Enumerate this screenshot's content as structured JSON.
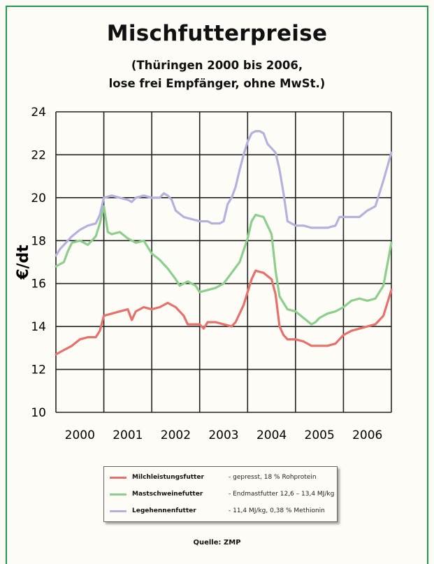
{
  "chart_data": {
    "type": "line",
    "title": "Mischfutterpreise",
    "subtitle_line1": "(Thüringen 2000 bis 2006,",
    "subtitle_line2": "lose frei Empfänger, ohne MwSt.)",
    "ylabel": "€/dt",
    "xlabel": "",
    "ylim": [
      10,
      24
    ],
    "yticks": [
      10,
      12,
      14,
      16,
      18,
      20,
      22,
      24
    ],
    "xlim": [
      0,
      84
    ],
    "x_unit": "months since Jan 2000",
    "year_labels": [
      "2000",
      "2001",
      "2002",
      "2003",
      "2004",
      "2005",
      "2006"
    ],
    "grid": true,
    "legend_position": "bottom-center",
    "series": [
      {
        "name": "Milchleistungsfutter",
        "description": "- gepresst, 18 % Rohprotein",
        "color": "#e8706a",
        "points": [
          [
            0,
            12.7
          ],
          [
            2,
            12.9
          ],
          [
            4,
            13.1
          ],
          [
            6,
            13.4
          ],
          [
            8,
            13.5
          ],
          [
            10,
            13.5
          ],
          [
            11,
            13.8
          ],
          [
            12,
            14.5
          ],
          [
            14,
            14.6
          ],
          [
            16,
            14.7
          ],
          [
            18,
            14.8
          ],
          [
            19,
            14.3
          ],
          [
            20,
            14.7
          ],
          [
            22,
            14.9
          ],
          [
            24,
            14.8
          ],
          [
            26,
            14.9
          ],
          [
            28,
            15.1
          ],
          [
            30,
            14.9
          ],
          [
            32,
            14.5
          ],
          [
            33,
            14.1
          ],
          [
            36,
            14.1
          ],
          [
            37,
            13.9
          ],
          [
            38,
            14.2
          ],
          [
            40,
            14.2
          ],
          [
            42,
            14.1
          ],
          [
            44,
            14.0
          ],
          [
            45,
            14.2
          ],
          [
            47,
            15.0
          ],
          [
            48,
            15.6
          ],
          [
            49,
            16.2
          ],
          [
            50,
            16.6
          ],
          [
            52,
            16.5
          ],
          [
            54,
            16.2
          ],
          [
            55,
            15.5
          ],
          [
            56,
            14.0
          ],
          [
            57,
            13.6
          ],
          [
            58,
            13.4
          ],
          [
            60,
            13.4
          ],
          [
            62,
            13.3
          ],
          [
            64,
            13.1
          ],
          [
            66,
            13.1
          ],
          [
            68,
            13.1
          ],
          [
            70,
            13.2
          ],
          [
            72,
            13.6
          ],
          [
            74,
            13.8
          ],
          [
            76,
            13.9
          ],
          [
            78,
            14.0
          ],
          [
            80,
            14.1
          ],
          [
            82,
            14.5
          ],
          [
            84,
            15.7
          ]
        ]
      },
      {
        "name": "Mastschweinefutter",
        "description": "- Endmastfutter 12,6 – 13,4 MJ/kg",
        "color": "#8ccf8c",
        "points": [
          [
            0,
            16.8
          ],
          [
            2,
            17.0
          ],
          [
            3,
            17.5
          ],
          [
            4,
            17.9
          ],
          [
            6,
            18.0
          ],
          [
            8,
            17.8
          ],
          [
            10,
            18.2
          ],
          [
            11,
            18.8
          ],
          [
            12,
            19.6
          ],
          [
            13,
            18.4
          ],
          [
            14,
            18.3
          ],
          [
            16,
            18.4
          ],
          [
            18,
            18.1
          ],
          [
            20,
            17.9
          ],
          [
            22,
            18.0
          ],
          [
            24,
            17.4
          ],
          [
            26,
            17.1
          ],
          [
            28,
            16.7
          ],
          [
            30,
            16.2
          ],
          [
            31,
            15.9
          ],
          [
            33,
            16.1
          ],
          [
            35,
            15.9
          ],
          [
            36,
            15.6
          ],
          [
            38,
            15.7
          ],
          [
            40,
            15.8
          ],
          [
            42,
            16.0
          ],
          [
            44,
            16.5
          ],
          [
            46,
            17.0
          ],
          [
            48,
            18.1
          ],
          [
            49,
            18.9
          ],
          [
            50,
            19.2
          ],
          [
            52,
            19.1
          ],
          [
            54,
            18.3
          ],
          [
            55,
            16.6
          ],
          [
            56,
            15.4
          ],
          [
            57,
            15.1
          ],
          [
            58,
            14.8
          ],
          [
            60,
            14.7
          ],
          [
            62,
            14.4
          ],
          [
            64,
            14.1
          ],
          [
            65,
            14.2
          ],
          [
            66,
            14.4
          ],
          [
            68,
            14.6
          ],
          [
            70,
            14.7
          ],
          [
            72,
            14.9
          ],
          [
            74,
            15.2
          ],
          [
            76,
            15.3
          ],
          [
            78,
            15.2
          ],
          [
            80,
            15.3
          ],
          [
            82,
            15.9
          ],
          [
            84,
            17.9
          ]
        ]
      },
      {
        "name": "Legehennenfutter",
        "description": "- 11,4 MJ/kg, 0,38 % Methionin",
        "color": "#b4b2dd",
        "points": [
          [
            0,
            17.3
          ],
          [
            1,
            17.6
          ],
          [
            2,
            17.8
          ],
          [
            4,
            18.2
          ],
          [
            6,
            18.5
          ],
          [
            8,
            18.7
          ],
          [
            10,
            18.8
          ],
          [
            11,
            19.2
          ],
          [
            12,
            20.0
          ],
          [
            14,
            20.1
          ],
          [
            16,
            20.0
          ],
          [
            18,
            19.9
          ],
          [
            19,
            19.8
          ],
          [
            20,
            20.0
          ],
          [
            22,
            20.1
          ],
          [
            24,
            20.0
          ],
          [
            26,
            20.0
          ],
          [
            27,
            20.2
          ],
          [
            28,
            20.1
          ],
          [
            29,
            19.9
          ],
          [
            30,
            19.4
          ],
          [
            32,
            19.1
          ],
          [
            34,
            19.0
          ],
          [
            36,
            18.9
          ],
          [
            38,
            18.9
          ],
          [
            39,
            18.8
          ],
          [
            41,
            18.8
          ],
          [
            42,
            18.9
          ],
          [
            43,
            19.7
          ],
          [
            44,
            20.0
          ],
          [
            45,
            20.5
          ],
          [
            46,
            21.3
          ],
          [
            47,
            22.0
          ],
          [
            48,
            22.6
          ],
          [
            49,
            23.0
          ],
          [
            50,
            23.1
          ],
          [
            51,
            23.1
          ],
          [
            52,
            23.0
          ],
          [
            53,
            22.5
          ],
          [
            54,
            22.3
          ],
          [
            55,
            22.1
          ],
          [
            56,
            21.3
          ],
          [
            57,
            20.2
          ],
          [
            58,
            18.9
          ],
          [
            60,
            18.7
          ],
          [
            62,
            18.7
          ],
          [
            64,
            18.6
          ],
          [
            66,
            18.6
          ],
          [
            68,
            18.6
          ],
          [
            70,
            18.7
          ],
          [
            71,
            19.1
          ],
          [
            72,
            19.1
          ],
          [
            74,
            19.1
          ],
          [
            76,
            19.1
          ],
          [
            78,
            19.4
          ],
          [
            80,
            19.6
          ],
          [
            81,
            20.2
          ],
          [
            82,
            20.8
          ],
          [
            84,
            22.1
          ]
        ]
      }
    ]
  },
  "source": "Quelle: ZMP"
}
